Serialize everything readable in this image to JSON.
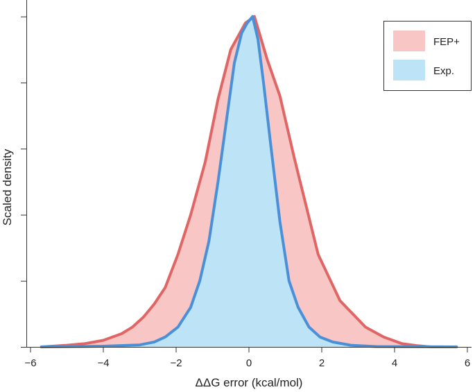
{
  "chart_data": {
    "type": "area",
    "title": "",
    "xlabel": "ΔΔG error (kcal/mol)",
    "ylabel": "Scaled density",
    "xlim": [
      -6,
      6
    ],
    "ylim": [
      0,
      1.05
    ],
    "x_ticks": [
      -6,
      -4,
      -2,
      0,
      2,
      4,
      6
    ],
    "x_tick_labels": [
      "−6",
      "−4",
      "−2",
      "0",
      "2",
      "4",
      "6"
    ],
    "y_ticks": [
      0,
      0.2,
      0.4,
      0.6,
      0.8,
      1.0
    ],
    "y_tick_labels_shown": false,
    "grid": false,
    "legend_position": "top-right",
    "series": [
      {
        "name": "FEP+",
        "fill_color": "#f9c6c6",
        "line_color": "#e06666",
        "x": [
          -5.7,
          -5.0,
          -4.5,
          -4.0,
          -3.5,
          -3.2,
          -2.9,
          -2.6,
          -2.3,
          -1.95,
          -1.6,
          -1.2,
          -0.85,
          -0.5,
          -0.1,
          0.15,
          0.5,
          0.85,
          1.25,
          1.9,
          2.5,
          3.2,
          3.7,
          4.2,
          4.6,
          5.0,
          5.7
        ],
        "values": [
          0.0,
          0.005,
          0.01,
          0.02,
          0.04,
          0.06,
          0.09,
          0.13,
          0.18,
          0.28,
          0.4,
          0.56,
          0.75,
          0.9,
          0.98,
          1.0,
          0.87,
          0.76,
          0.57,
          0.28,
          0.14,
          0.06,
          0.03,
          0.01,
          0.004,
          0.0,
          0.0
        ]
      },
      {
        "name": "Exp.",
        "fill_color": "#bde3f7",
        "line_color": "#4a90d9",
        "x": [
          -5.7,
          -4.0,
          -3.0,
          -2.6,
          -2.3,
          -1.95,
          -1.6,
          -1.35,
          -1.1,
          -0.85,
          -0.6,
          -0.4,
          -0.2,
          -0.05,
          0.1,
          0.25,
          0.4,
          0.6,
          0.85,
          1.1,
          1.35,
          1.65,
          1.95,
          2.3,
          2.8,
          3.5,
          5.7
        ],
        "values": [
          0.0,
          0.002,
          0.006,
          0.015,
          0.03,
          0.06,
          0.12,
          0.2,
          0.32,
          0.5,
          0.7,
          0.86,
          0.95,
          0.98,
          1.0,
          0.93,
          0.8,
          0.61,
          0.38,
          0.2,
          0.12,
          0.06,
          0.03,
          0.015,
          0.005,
          0.001,
          0.0
        ]
      }
    ]
  }
}
